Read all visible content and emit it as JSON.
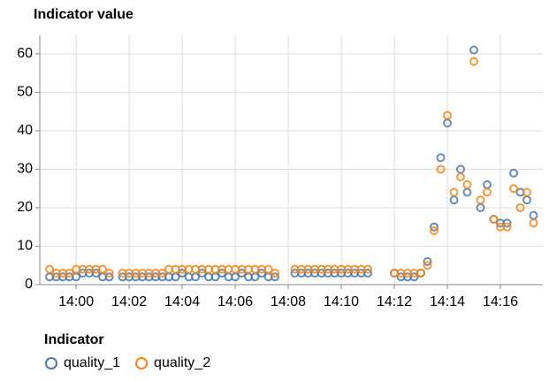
{
  "chart_data": {
    "type": "scatter",
    "title": "Indicator value",
    "legend_title": "Indicator",
    "legend": "bottom-left",
    "grid": true,
    "x": [
      839.0,
      839.25,
      839.5,
      839.75,
      840.0,
      840.25,
      840.5,
      840.75,
      841.0,
      841.25,
      841.5,
      841.75,
      842.0,
      842.25,
      842.5,
      842.75,
      843.0,
      843.25,
      843.5,
      843.75,
      844.0,
      844.25,
      844.5,
      844.75,
      845.0,
      845.25,
      845.5,
      845.75,
      846.0,
      846.25,
      846.5,
      846.75,
      847.0,
      847.25,
      847.5,
      847.75,
      848.0,
      848.25,
      848.5,
      848.75,
      849.0,
      849.25,
      849.5,
      849.75,
      850.0,
      850.25,
      850.5,
      850.75,
      851.0,
      851.25,
      851.5,
      851.75,
      852.0,
      852.25,
      852.5,
      852.75,
      853.0,
      853.25,
      853.5,
      853.75,
      854.0,
      854.25,
      854.5,
      854.75,
      855.0,
      855.25,
      855.5,
      855.75,
      856.0,
      856.25,
      856.5,
      856.75,
      857.0,
      857.25
    ],
    "series": [
      {
        "name": "quality_1",
        "color": "#4c78a8",
        "values": [
          2,
          2,
          2,
          2,
          2,
          3,
          3,
          3,
          2,
          2,
          null,
          2,
          2,
          2,
          2,
          2,
          2,
          2,
          2,
          2,
          3,
          2,
          2,
          3,
          2,
          2,
          3,
          2,
          2,
          3,
          2,
          2,
          3,
          2,
          2,
          null,
          null,
          3,
          3,
          3,
          3,
          3,
          3,
          3,
          3,
          3,
          3,
          3,
          3,
          null,
          null,
          null,
          3,
          2,
          2,
          2,
          3,
          6,
          15,
          33,
          42,
          22,
          30,
          24,
          61,
          20,
          26,
          17,
          16,
          16,
          29,
          24,
          22,
          18
        ]
      },
      {
        "name": "quality_2",
        "color": "#f58518",
        "values": [
          4,
          3,
          3,
          3,
          4,
          4,
          4,
          4,
          4,
          3,
          null,
          3,
          3,
          3,
          3,
          3,
          3,
          3,
          4,
          4,
          4,
          4,
          4,
          4,
          4,
          4,
          4,
          4,
          4,
          4,
          4,
          4,
          4,
          4,
          3,
          null,
          null,
          4,
          4,
          4,
          4,
          4,
          4,
          4,
          4,
          4,
          4,
          4,
          4,
          null,
          null,
          null,
          3,
          3,
          3,
          3,
          3,
          5,
          14,
          30,
          44,
          24,
          28,
          26,
          58,
          22,
          24,
          17,
          15,
          15,
          25,
          20,
          24,
          16
        ]
      }
    ],
    "xlim": [
      838.63,
      857.6
    ],
    "xticks": [
      {
        "value": 840,
        "label": "14:00"
      },
      {
        "value": 842,
        "label": "14:02"
      },
      {
        "value": 844,
        "label": "14:04"
      },
      {
        "value": 846,
        "label": "14:06"
      },
      {
        "value": 848,
        "label": "14:08"
      },
      {
        "value": 850,
        "label": "14:10"
      },
      {
        "value": 852,
        "label": "14:12"
      },
      {
        "value": 854,
        "label": "14:14"
      },
      {
        "value": 856,
        "label": "14:16"
      }
    ],
    "ylim": [
      0,
      64.8
    ],
    "yticks": [
      0,
      10,
      20,
      30,
      40,
      50,
      60
    ]
  }
}
